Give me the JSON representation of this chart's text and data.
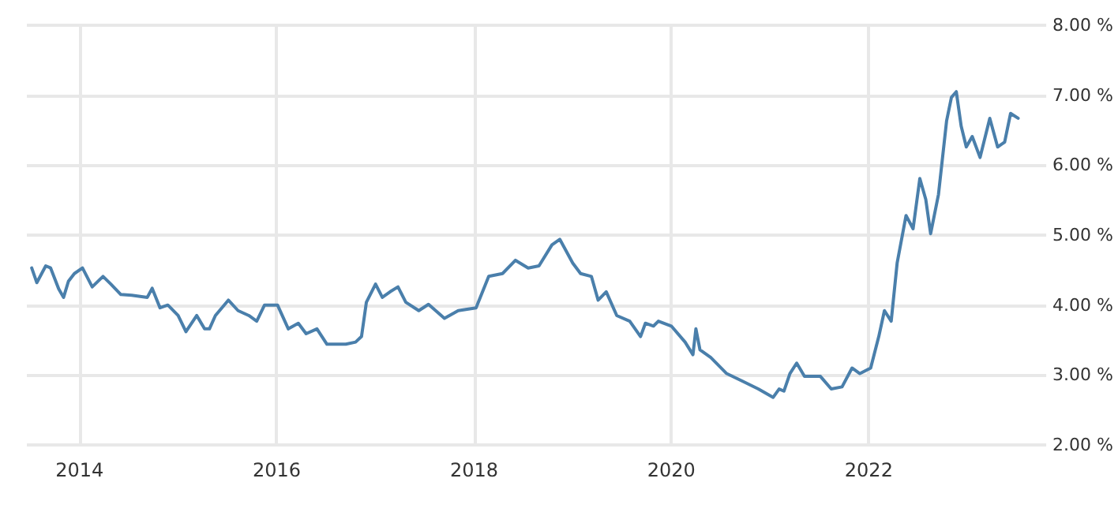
{
  "chart_data": {
    "type": "line",
    "color": "#4a7fab",
    "grid": true,
    "marker": "none",
    "line_style": "solid",
    "xlim": [
      "2013-06-20",
      "2023-10-20"
    ],
    "xticks": [
      "2014",
      "2016",
      "2018",
      "2020",
      "2022"
    ],
    "ylim": [
      2,
      8
    ],
    "yticks": [
      {
        "value": 2,
        "label": "2.00 %"
      },
      {
        "value": 3,
        "label": "3.00 %"
      },
      {
        "value": 4,
        "label": "4.00 %"
      },
      {
        "value": 5,
        "label": "5.00 %"
      },
      {
        "value": 6,
        "label": "6.00 %"
      },
      {
        "value": 7,
        "label": "7.00 %"
      },
      {
        "value": 8,
        "label": "8.00 %"
      }
    ],
    "x": [
      "2013-07-08",
      "2013-07-27",
      "2013-08-29",
      "2013-09-16",
      "2013-10-16",
      "2013-11-03",
      "2013-11-21",
      "2013-12-13",
      "2014-01-12",
      "2014-02-17",
      "2014-03-29",
      "2014-04-27",
      "2014-06-03",
      "2014-07-13",
      "2014-09-09",
      "2014-09-27",
      "2014-10-26",
      "2014-11-24",
      "2015-01-01",
      "2015-01-30",
      "2015-03-11",
      "2015-04-09",
      "2015-04-27",
      "2015-05-19",
      "2015-07-06",
      "2015-08-11",
      "2015-09-20",
      "2015-10-19",
      "2015-11-17",
      "2016-01-04",
      "2016-02-13",
      "2016-03-21",
      "2016-04-19",
      "2016-05-29",
      "2016-07-05",
      "2016-09-13",
      "2016-10-19",
      "2016-11-10",
      "2016-11-28",
      "2017-01-01",
      "2017-01-26",
      "2017-02-24",
      "2017-03-25",
      "2017-04-23",
      "2017-06-10",
      "2017-07-16",
      "2017-09-13",
      "2017-11-03",
      "2018-01-08",
      "2018-02-24",
      "2018-04-16",
      "2018-06-03",
      "2018-07-20",
      "2018-08-29",
      "2018-10-16",
      "2018-11-14",
      "2019-01-01",
      "2019-01-30",
      "2019-03-11",
      "2019-04-05",
      "2019-05-05",
      "2019-06-13",
      "2019-07-31",
      "2019-09-09",
      "2019-09-27",
      "2019-10-27",
      "2019-11-14",
      "2020-01-01",
      "2020-02-21",
      "2020-03-21",
      "2020-04-01",
      "2020-04-16",
      "2020-05-26",
      "2020-07-24",
      "2020-09-21",
      "2020-11-18",
      "2021-01-12",
      "2021-02-03",
      "2021-02-21",
      "2021-03-15",
      "2021-04-09",
      "2021-05-08",
      "2021-07-06",
      "2021-08-15",
      "2021-09-24",
      "2021-10-31",
      "2021-11-29",
      "2022-01-08",
      "2022-02-07",
      "2022-02-28",
      "2022-03-25",
      "2022-04-16",
      "2022-05-19",
      "2022-06-14",
      "2022-07-09",
      "2022-07-31",
      "2022-08-18",
      "2022-09-16",
      "2022-10-16",
      "2022-11-03",
      "2022-11-21",
      "2022-12-09",
      "2022-12-28",
      "2023-01-19",
      "2023-02-17",
      "2023-03-25",
      "2023-04-23",
      "2023-05-19",
      "2023-06-10",
      "2023-07-08"
    ],
    "values": [
      4.53,
      4.32,
      4.56,
      4.53,
      4.23,
      4.11,
      4.34,
      4.45,
      4.53,
      4.26,
      4.41,
      4.3,
      4.15,
      4.14,
      4.11,
      4.24,
      3.96,
      4.0,
      3.85,
      3.62,
      3.85,
      3.66,
      3.66,
      3.85,
      4.07,
      3.92,
      3.85,
      3.77,
      4.0,
      4.0,
      3.66,
      3.74,
      3.59,
      3.66,
      3.44,
      3.44,
      3.47,
      3.55,
      4.04,
      4.3,
      4.11,
      4.19,
      4.26,
      4.04,
      3.92,
      4.01,
      3.81,
      3.92,
      3.96,
      4.41,
      4.45,
      4.64,
      4.53,
      4.56,
      4.86,
      4.94,
      4.6,
      4.45,
      4.41,
      4.07,
      4.19,
      3.85,
      3.77,
      3.55,
      3.74,
      3.7,
      3.77,
      3.7,
      3.47,
      3.29,
      3.66,
      3.36,
      3.25,
      3.02,
      2.91,
      2.8,
      2.68,
      2.8,
      2.77,
      3.02,
      3.17,
      2.98,
      2.98,
      2.8,
      2.83,
      3.1,
      3.02,
      3.1,
      3.55,
      3.92,
      3.77,
      4.6,
      5.28,
      5.09,
      5.81,
      5.51,
      5.02,
      5.58,
      6.63,
      6.97,
      7.05,
      6.56,
      6.26,
      6.41,
      6.11,
      6.67,
      6.26,
      6.33,
      6.74,
      6.67
    ]
  }
}
